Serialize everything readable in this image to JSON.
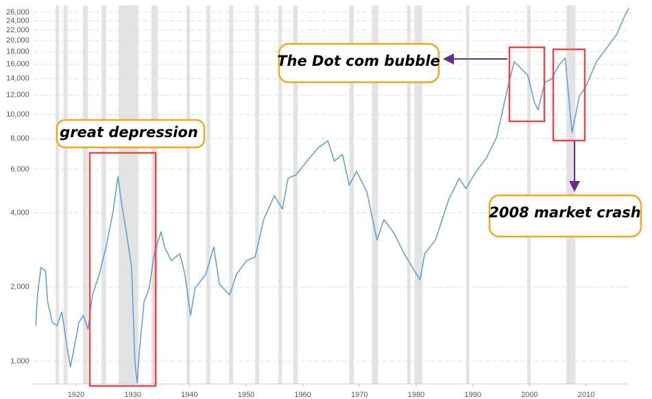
{
  "chart_data": {
    "type": "line",
    "log_y": true,
    "grid": true,
    "color": "#5b9bd5",
    "band_color": "#e3e3e3",
    "x": [
      1912.9,
      1913.2,
      1913.8,
      1914.6,
      1915.0,
      1915.8,
      1916.6,
      1917.5,
      1918.3,
      1919.0,
      1919.6,
      1920.5,
      1921.3,
      1922.1,
      1922.9,
      1924.1,
      1925.3,
      1926.5,
      1927.4,
      1928.1,
      1928.9,
      1929.8,
      1930.4,
      1930.8,
      1931.2,
      1932.0,
      1932.9,
      1933.8,
      1935.0,
      1935.6,
      1936.8,
      1938.3,
      1939.2,
      1940.2,
      1941.0,
      1942.9,
      1944.3,
      1945.3,
      1947.1,
      1948.3,
      1950.1,
      1951.6,
      1953.1,
      1955.0,
      1956.4,
      1957.4,
      1958.8,
      1959.8,
      1961.2,
      1962.8,
      1964.4,
      1965.6,
      1967.0,
      1968.2,
      1969.5,
      1971.3,
      1973.1,
      1974.3,
      1976.1,
      1977.9,
      1979.7,
      1980.7,
      1981.5,
      1983.4,
      1985.8,
      1987.6,
      1988.8,
      1990.6,
      1992.4,
      1994.2,
      1996.1,
      1997.3,
      1998.5,
      1999.7,
      2000.9,
      2001.5,
      2002.7,
      2003.9,
      2005.2,
      2006.3,
      2007.5,
      2008.8,
      2010.0,
      2011.8,
      2013.6,
      2015.4,
      2016.6,
      2017.5
    ],
    "values": [
      1394,
      1860,
      2400,
      2330,
      1745,
      1440,
      1394,
      1585,
      1190,
      950,
      1115,
      1440,
      1535,
      1350,
      1860,
      2255,
      2910,
      4010,
      5600,
      4270,
      3310,
      2400,
      980,
      820,
      1115,
      1745,
      1980,
      2730,
      3350,
      2910,
      2560,
      2730,
      2255,
      1535,
      1980,
      2255,
      2910,
      2050,
      1860,
      2255,
      2560,
      2650,
      3760,
      4700,
      4140,
      5520,
      5700,
      6080,
      6680,
      7360,
      7840,
      6480,
      6900,
      5180,
      5890,
      4860,
      3100,
      3760,
      3310,
      2730,
      2330,
      2140,
      2730,
      3100,
      4560,
      5520,
      5010,
      5890,
      6680,
      8090,
      12700,
      16400,
      15380,
      14430,
      11140,
      10460,
      13500,
      13950,
      15900,
      16950,
      8460,
      11870,
      13080,
      16400,
      18600,
      21160,
      24580,
      27000
    ],
    "recessions": [
      [
        1916.4,
        1917.0
      ],
      [
        1917.8,
        1918.5
      ],
      [
        1921.2,
        1922.1
      ],
      [
        1924.5,
        1925.3
      ],
      [
        1927.5,
        1931.0
      ],
      [
        1933.3,
        1934.4
      ],
      [
        1939.5,
        1940.1
      ],
      [
        1943.0,
        1943.7
      ],
      [
        1947.0,
        1947.7
      ],
      [
        1951.6,
        1952.3
      ],
      [
        1955.7,
        1956.3
      ],
      [
        1958.3,
        1959.1
      ],
      [
        1968.2,
        1969.0
      ],
      [
        1972.2,
        1973.3
      ],
      [
        1978.4,
        1979.0
      ],
      [
        1979.7,
        1981.1
      ],
      [
        1988.8,
        1989.4
      ],
      [
        1999.6,
        2000.2
      ],
      [
        2006.5,
        2008.1
      ]
    ],
    "xlim": [
      1912,
      2017.5
    ],
    "xticks": [
      1920,
      1930,
      1940,
      1950,
      1960,
      1970,
      1980,
      1990,
      2000,
      2010
    ],
    "ylim": [
      810,
      27700
    ],
    "yticks": [
      {
        "value": 1000,
        "label": "1,000"
      },
      {
        "value": 2000,
        "label": "2,000"
      },
      {
        "value": 4000,
        "label": "4,000"
      },
      {
        "value": 6000,
        "label": "6,000"
      },
      {
        "value": 8000,
        "label": "8,000"
      },
      {
        "value": 10000,
        "label": "10,000"
      },
      {
        "value": 12000,
        "label": "12,000"
      },
      {
        "value": 14000,
        "label": "14,000"
      },
      {
        "value": 16000,
        "label": "16,000"
      },
      {
        "value": 18000,
        "label": "18,000"
      },
      {
        "value": 20000,
        "label": "20,000"
      },
      {
        "value": 22000,
        "label": "22,000"
      },
      {
        "value": 24000,
        "label": "24,000"
      },
      {
        "value": 26000,
        "label": "26,000"
      }
    ],
    "annotations": [
      "The Dot com bubble",
      "great depression",
      "2008 market crash"
    ]
  }
}
